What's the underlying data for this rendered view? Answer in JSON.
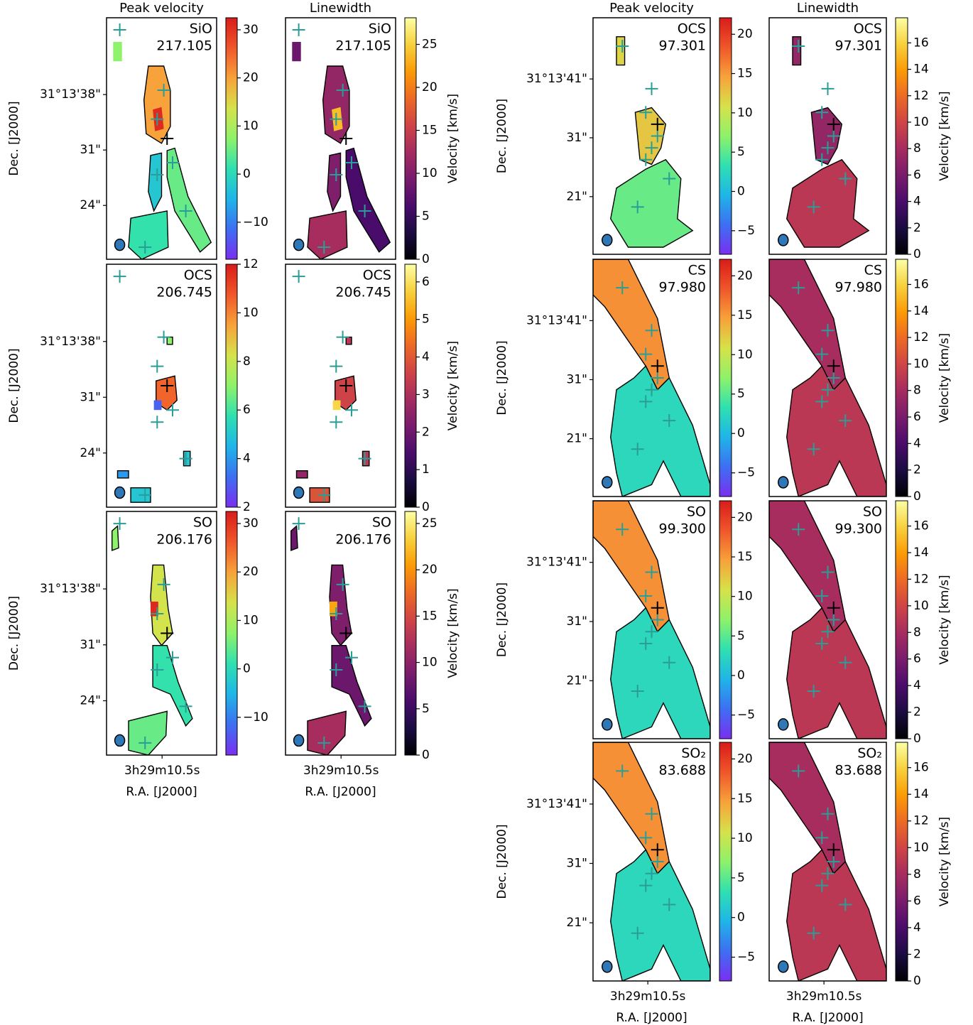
{
  "chart_data": [
    {
      "type": "map",
      "title": "Peak velocity",
      "molecule": "SiO",
      "frequency": "217.105",
      "colormap": "turbo",
      "ylabel": "Dec. [J2000]",
      "ylim": [
        17.2,
        47.7
      ],
      "yticks": [
        {
          "value": 38,
          "label": "31°13'38\""
        },
        {
          "value": 31,
          "label": "31\""
        },
        {
          "value": 24,
          "label": "24\""
        }
      ],
      "y2lim": [
        -17.7,
        32.5
      ],
      "y2ticks": [
        {
          "value": -10,
          "label": "−10"
        },
        0,
        10,
        20,
        30
      ]
    },
    {
      "type": "map",
      "title": "Linewidth",
      "molecule": "SiO",
      "frequency": "217.105",
      "colormap": "inferno",
      "y2lim": [
        0,
        28.1
      ],
      "y2ticks": [
        0,
        5,
        10,
        15,
        20,
        25
      ],
      "y2label": "Velocity [km/s]"
    },
    {
      "type": "map",
      "molecule": "OCS",
      "frequency": "206.745",
      "colormap": "turbo",
      "ylabel": "Dec. [J2000]",
      "ylim": [
        17.2,
        47.7
      ],
      "yticks": [
        {
          "value": 38,
          "label": "31°13'38\""
        },
        {
          "value": 31,
          "label": "31\""
        },
        {
          "value": 24,
          "label": "24\""
        }
      ],
      "y2lim": [
        2,
        12
      ],
      "y2ticks": [
        2,
        4,
        6,
        8,
        10,
        12
      ]
    },
    {
      "type": "map",
      "molecule": "OCS",
      "frequency": "206.745",
      "colormap": "inferno",
      "y2lim": [
        0,
        6.47
      ],
      "y2ticks": [
        0,
        1,
        2,
        3,
        4,
        5,
        6
      ],
      "y2label": "Velocity [km/s]"
    },
    {
      "type": "map",
      "molecule": "SO",
      "frequency": "206.176",
      "colormap": "turbo",
      "ylabel": "Dec. [J2000]",
      "ylim": [
        17.2,
        47.7
      ],
      "yticks": [
        {
          "value": 38,
          "label": "31°13'38\""
        },
        {
          "value": 31,
          "label": "31\""
        },
        {
          "value": 24,
          "label": "24\""
        }
      ],
      "xlabel": "R.A. [J2000]",
      "xlim": [
        11.05,
        9.96
      ],
      "xticks": [
        {
          "value": 10.5,
          "label": "3h29m10.5s"
        }
      ],
      "y2lim": [
        -17.8,
        32.5
      ],
      "y2ticks": [
        {
          "value": -10,
          "label": "−10"
        },
        0,
        10,
        20,
        30
      ]
    },
    {
      "type": "map",
      "molecule": "SO",
      "frequency": "206.176",
      "colormap": "inferno",
      "xlabel": "R.A. [J2000]",
      "xlim": [
        11.05,
        9.96
      ],
      "xticks": [
        {
          "value": 10.5,
          "label": "3h29m10.5s"
        }
      ],
      "y2lim": [
        0,
        26.3
      ],
      "y2ticks": [
        0,
        5,
        10,
        15,
        20,
        25
      ],
      "y2label": "Velocity [km/s]"
    },
    {
      "type": "map",
      "title": "Peak velocity",
      "molecule": "OCS",
      "frequency": "97.301",
      "colormap": "turbo",
      "ylabel": "Dec. [J2000]",
      "ylim": [
        11.2,
        51.4
      ],
      "yticks": [
        {
          "value": 41,
          "label": "31°13'41\""
        },
        {
          "value": 31,
          "label": "31\""
        },
        {
          "value": 21,
          "label": "21\""
        }
      ],
      "y2lim": [
        -8,
        22.1
      ],
      "y2ticks": [
        {
          "value": -5,
          "label": "−5"
        },
        0,
        5,
        10,
        15,
        20
      ]
    },
    {
      "type": "map",
      "title": "Linewidth",
      "molecule": "OCS",
      "frequency": "97.301",
      "colormap": "inferno",
      "y2lim": [
        0,
        17.9
      ],
      "y2ticks": [
        0,
        2,
        4,
        6,
        8,
        10,
        12,
        14,
        16
      ],
      "y2label": "Velocity [km/s]"
    },
    {
      "type": "map",
      "molecule": "CS",
      "frequency": "97.980",
      "colormap": "turbo",
      "ylabel": "Dec. [J2000]",
      "ylim": [
        11.2,
        51.4
      ],
      "yticks": [
        {
          "value": 41,
          "label": "31°13'41\""
        },
        {
          "value": 31,
          "label": "31\""
        },
        {
          "value": 21,
          "label": "21\""
        }
      ],
      "y2lim": [
        -8,
        22.1
      ],
      "y2ticks": [
        {
          "value": -5,
          "label": "−5"
        },
        0,
        5,
        10,
        15,
        20
      ]
    },
    {
      "type": "map",
      "molecule": "CS",
      "frequency": "97.980",
      "colormap": "inferno",
      "y2lim": [
        0,
        17.9
      ],
      "y2ticks": [
        0,
        2,
        4,
        6,
        8,
        10,
        12,
        14,
        16
      ],
      "y2label": "Velocity [km/s]"
    },
    {
      "type": "map",
      "molecule": "SO",
      "frequency": "99.300",
      "colormap": "turbo",
      "ylabel": "Dec. [J2000]",
      "ylim": [
        11.2,
        51.4
      ],
      "yticks": [
        {
          "value": 41,
          "label": "31°13'41\""
        },
        {
          "value": 31,
          "label": "31\""
        },
        {
          "value": 21,
          "label": "21\""
        }
      ],
      "y2lim": [
        -8,
        22.1
      ],
      "y2ticks": [
        {
          "value": -5,
          "label": "−5"
        },
        0,
        5,
        10,
        15,
        20
      ]
    },
    {
      "type": "map",
      "molecule": "SO",
      "frequency": "99.300",
      "colormap": "inferno",
      "y2lim": [
        0,
        17.9
      ],
      "y2ticks": [
        0,
        2,
        4,
        6,
        8,
        10,
        12,
        14,
        16
      ],
      "y2label": "Velocity [km/s]"
    },
    {
      "type": "map",
      "molecule": "SO₂",
      "frequency": "83.688",
      "colormap": "turbo",
      "ylabel": "Dec. [J2000]",
      "ylim": [
        11.2,
        51.4
      ],
      "yticks": [
        {
          "value": 41,
          "label": "31°13'41\""
        },
        {
          "value": 31,
          "label": "31\""
        },
        {
          "value": 21,
          "label": "21\""
        }
      ],
      "xlabel": "R.A. [J2000]",
      "xlim": [
        11.22,
        9.68
      ],
      "xticks": [
        {
          "value": 10.5,
          "label": "3h29m10.5s"
        }
      ],
      "y2lim": [
        -8,
        22.1
      ],
      "y2ticks": [
        {
          "value": -5,
          "label": "−5"
        },
        0,
        5,
        10,
        15,
        20
      ]
    },
    {
      "type": "map",
      "molecule": "SO₂",
      "frequency": "83.688",
      "colormap": "inferno",
      "xlabel": "R.A. [J2000]",
      "xlim": [
        11.22,
        9.68
      ],
      "xticks": [
        {
          "value": 10.5,
          "label": "3h29m10.5s"
        }
      ],
      "y2lim": [
        0,
        17.9
      ],
      "y2ticks": [
        0,
        2,
        4,
        6,
        8,
        10,
        12,
        14,
        16
      ],
      "y2label": "Velocity [km/s]"
    }
  ]
}
